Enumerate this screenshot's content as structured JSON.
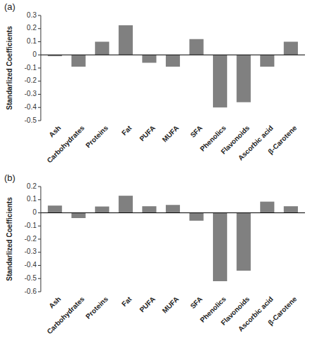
{
  "chart_data": [
    {
      "type": "bar",
      "title": "(a)",
      "categories": [
        "Ash",
        "Carbohydrates",
        "Proteins",
        "Fat",
        "PUFA",
        "MUFA",
        "SFA",
        "Phenolics",
        "Flavonoids",
        "Ascorbic acid",
        "β-Carotene"
      ],
      "values": [
        -0.01,
        -0.09,
        0.1,
        0.225,
        -0.06,
        -0.09,
        0.12,
        -0.4,
        -0.36,
        -0.09,
        0.1
      ],
      "color": "#808080",
      "ylabel": "Standarlized Coefficients",
      "ylim": [
        -0.5,
        0.3
      ],
      "yticks": [
        -0.5,
        -0.4,
        -0.3,
        -0.2,
        -0.1,
        0,
        0.1,
        0.2,
        0.3
      ]
    },
    {
      "type": "bar",
      "title": "(b)",
      "categories": [
        "Ash",
        "Carbohydrates",
        "Proteins",
        "Fat",
        "PUFA",
        "MUFA",
        "SFA",
        "Phenolics",
        "Flavonoids",
        "Ascorbic acid",
        "β-Carotene"
      ],
      "values": [
        0.055,
        -0.04,
        0.048,
        0.13,
        0.05,
        0.06,
        -0.06,
        -0.52,
        -0.44,
        0.085,
        0.05
      ],
      "color": "#808080",
      "ylabel": "Standarlized Coefficients",
      "ylim": [
        -0.6,
        0.2
      ],
      "yticks": [
        -0.6,
        -0.5,
        -0.4,
        -0.3,
        -0.2,
        -0.1,
        0,
        0.1,
        0.2
      ]
    }
  ]
}
